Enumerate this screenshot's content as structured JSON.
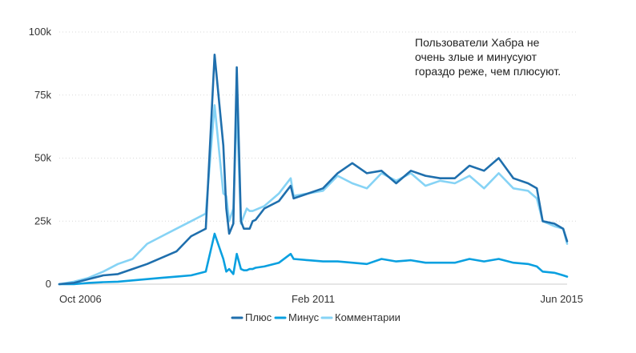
{
  "chart_data": {
    "type": "line",
    "ylim": [
      0,
      100000
    ],
    "y_ticks": [
      {
        "value": 0,
        "label": "0"
      },
      {
        "value": 25000,
        "label": "25k"
      },
      {
        "value": 50000,
        "label": "50k"
      },
      {
        "value": 75000,
        "label": "75k"
      },
      {
        "value": 100000,
        "label": "100k"
      }
    ],
    "x_ticks": [
      {
        "value": 2006.75,
        "label": "Oct 2006"
      },
      {
        "value": 2011.083,
        "label": "Feb 2011"
      },
      {
        "value": 2015.417,
        "label": "Jun 2015"
      }
    ],
    "xlim": [
      2006.75,
      2015.417
    ],
    "grid": "horizontal dotted",
    "legend_position": "bottom",
    "annotation": "Пользователи Хабра не очень злые и минусуют гораздо реже, чем плюсуют.",
    "x": [
      2006.75,
      2007.0,
      2007.25,
      2007.5,
      2007.75,
      2008.0,
      2008.25,
      2008.5,
      2008.75,
      2009.0,
      2009.25,
      2009.4,
      2009.55,
      2009.6,
      2009.65,
      2009.72,
      2009.78,
      2009.85,
      2009.9,
      2009.95,
      2010.0,
      2010.05,
      2010.1,
      2010.25,
      2010.5,
      2010.7,
      2010.75,
      2011.0,
      2011.25,
      2011.5,
      2011.75,
      2012.0,
      2012.25,
      2012.5,
      2012.75,
      2013.0,
      2013.25,
      2013.5,
      2013.75,
      2014.0,
      2014.25,
      2014.5,
      2014.75,
      2014.9,
      2015.0,
      2015.2,
      2015.35,
      2015.417
    ],
    "series": [
      {
        "name": "Плюс",
        "color": "#1f6fad",
        "values": [
          0,
          500,
          2000,
          3500,
          4000,
          6000,
          8000,
          10500,
          13000,
          19000,
          22000,
          91000,
          55000,
          30000,
          20000,
          24000,
          86000,
          25000,
          22000,
          22000,
          22000,
          25000,
          25500,
          30000,
          33000,
          39000,
          34000,
          36000,
          38000,
          44000,
          48000,
          44000,
          45000,
          40000,
          45000,
          43000,
          42000,
          42000,
          47000,
          45000,
          50000,
          42000,
          40000,
          38000,
          25000,
          24000,
          22000,
          17000
        ]
      },
      {
        "name": "Минус",
        "color": "#0aa0e0",
        "values": [
          0,
          0,
          500,
          800,
          1000,
          1500,
          2000,
          2500,
          3000,
          3500,
          5000,
          20000,
          10000,
          5000,
          6000,
          4000,
          12000,
          6000,
          5500,
          5500,
          6000,
          6000,
          6500,
          7000,
          8500,
          12000,
          10000,
          9500,
          9000,
          9000,
          8500,
          8000,
          10000,
          9000,
          9500,
          8500,
          8500,
          8500,
          10000,
          9000,
          10000,
          8500,
          8000,
          7000,
          5000,
          4500,
          3500,
          3000
        ]
      },
      {
        "name": "Комментарии",
        "color": "#86d3f5",
        "values": [
          0,
          1000,
          2500,
          5000,
          8000,
          10000,
          16000,
          19000,
          22000,
          25000,
          28000,
          71000,
          36000,
          35000,
          25000,
          30000,
          70000,
          24000,
          27000,
          30000,
          29000,
          29000,
          29500,
          31000,
          36000,
          42000,
          35000,
          36000,
          37000,
          43000,
          40000,
          38000,
          44000,
          41000,
          44000,
          39000,
          41000,
          40000,
          43000,
          38000,
          44000,
          38000,
          37000,
          34000,
          25000,
          23000,
          22000,
          16000
        ]
      }
    ]
  }
}
